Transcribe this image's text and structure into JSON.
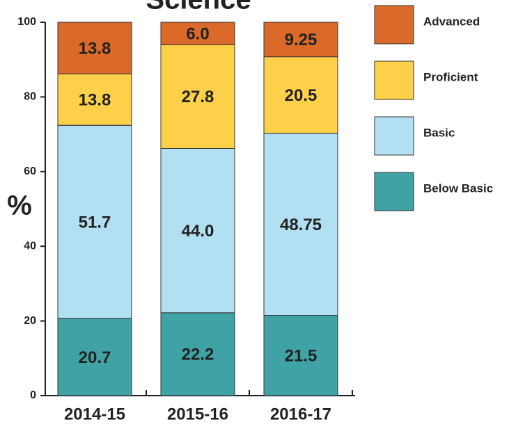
{
  "chart_data": {
    "type": "stacked_bar",
    "title": "Science",
    "y_label": "%",
    "categories": [
      "2014-15",
      "2015-16",
      "2016-17"
    ],
    "series": [
      {
        "name": "Below Basic",
        "color": "#3fa3a6",
        "values": [
          20.7,
          22.2,
          21.5
        ],
        "value_labels": [
          "20.7",
          "22.2",
          "21.5"
        ]
      },
      {
        "name": "Basic",
        "color": "#b3dff2",
        "values": [
          51.7,
          44.0,
          48.75
        ],
        "value_labels": [
          "51.7",
          "44.0",
          "48.75"
        ]
      },
      {
        "name": "Proficient",
        "color": "#fdd04a",
        "values": [
          13.8,
          27.8,
          20.5
        ],
        "value_labels": [
          "13.8",
          "27.8",
          "20.5"
        ]
      },
      {
        "name": "Advanced",
        "color": "#db6a2a",
        "values": [
          13.8,
          6.0,
          9.25
        ],
        "value_labels": [
          "13.8",
          "6.0",
          "9.25"
        ]
      }
    ],
    "ylim": [
      0,
      100
    ],
    "yticks": [
      0,
      20,
      40,
      60,
      80,
      100
    ],
    "legend": "right"
  }
}
